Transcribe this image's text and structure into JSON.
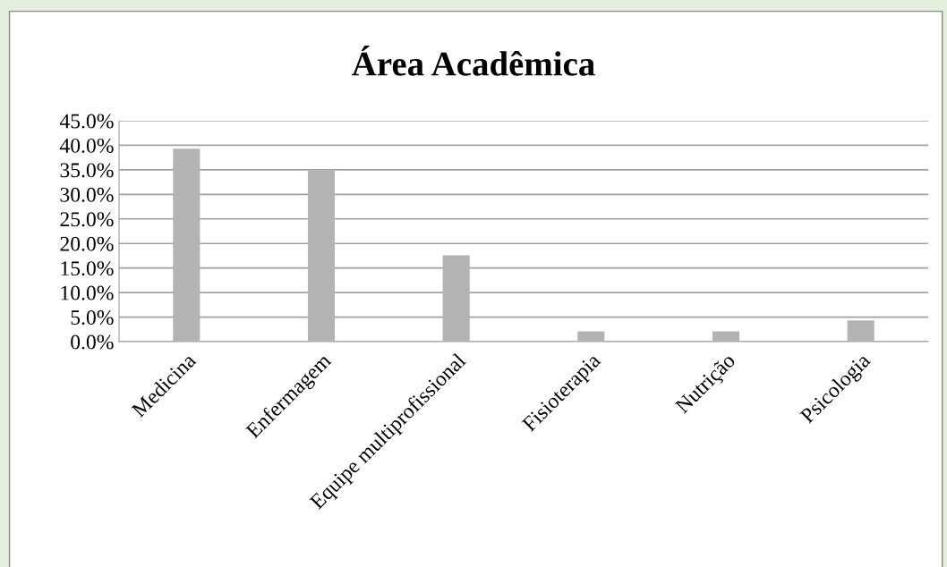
{
  "chart_data": {
    "type": "bar",
    "title": "Área Acadêmica",
    "categories": [
      "Medicina",
      "Enfermagem",
      "Equipe multiprofissional",
      "Fisioterapia",
      "Nutrição",
      "Psicologia"
    ],
    "values": [
      39.3,
      34.8,
      17.6,
      2.1,
      2.1,
      4.3
    ],
    "color": "#b3b3b3",
    "ylim": [
      0,
      45
    ],
    "yticks": [
      {
        "value": 0,
        "label": "0.0%"
      },
      {
        "value": 5,
        "label": "5.0%"
      },
      {
        "value": 10,
        "label": "10.0%"
      },
      {
        "value": 15,
        "label": "15.0%"
      },
      {
        "value": 20,
        "label": "20.0%"
      },
      {
        "value": 25,
        "label": "25.0%"
      },
      {
        "value": 30,
        "label": "30.0%"
      },
      {
        "value": 35,
        "label": "35.0%"
      },
      {
        "value": 40,
        "label": "40.0%"
      },
      {
        "value": 45,
        "label": "45.0%"
      }
    ],
    "grid": "y"
  }
}
